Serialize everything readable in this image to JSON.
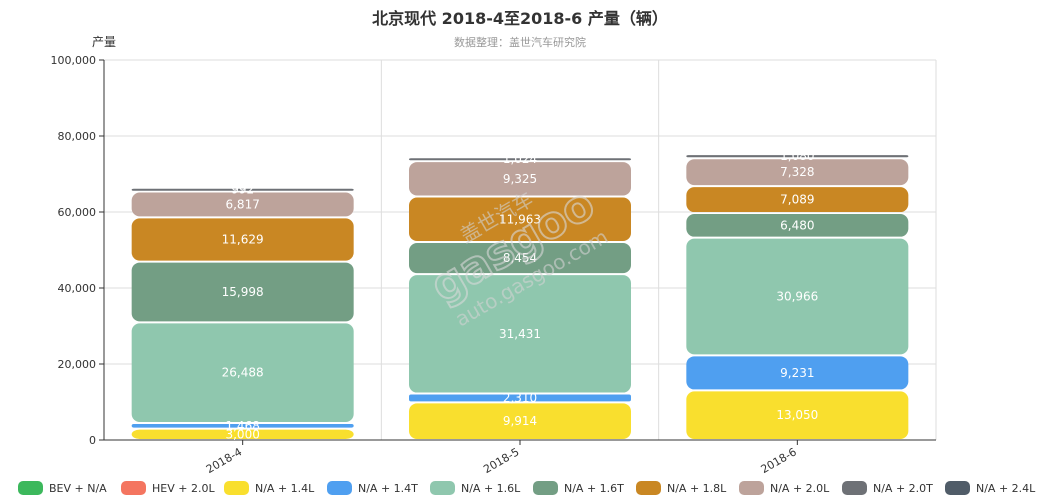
{
  "title": "北京现代 2018-4至2018-6 产量（辆）",
  "subtitle": "数据整理：盖世汽车研究院",
  "watermark": {
    "brand": "gasgoo",
    "cn": "盖世汽车",
    "url": "auto.gasgoo.com"
  },
  "chart_data": {
    "type": "bar",
    "stacked": true,
    "categories": [
      "2018-4",
      "2018-5",
      "2018-6"
    ],
    "ylabel": "产量",
    "ylim": [
      0,
      100000
    ],
    "yticks": [
      0,
      20000,
      40000,
      60000,
      80000,
      100000
    ],
    "grid": true,
    "legend_position": "bottom",
    "series": [
      {
        "name": "BEV + N/A",
        "color": "#3cb85c",
        "values": [
          0,
          0,
          0
        ]
      },
      {
        "name": "HEV + 2.0L",
        "color": "#f47560",
        "values": [
          0,
          0,
          0
        ]
      },
      {
        "name": "N/A + 1.4L",
        "color": "#f9df2e",
        "values": [
          3000,
          9914,
          13050
        ]
      },
      {
        "name": "N/A + 1.4T",
        "color": "#4f9ff0",
        "values": [
          1468,
          2310,
          9231
        ]
      },
      {
        "name": "N/A + 1.6L",
        "color": "#8fc7ae",
        "values": [
          26488,
          31431,
          30966
        ]
      },
      {
        "name": "N/A + 1.6T",
        "color": "#739e84",
        "values": [
          15998,
          8454,
          6480
        ]
      },
      {
        "name": "N/A + 1.8L",
        "color": "#c98723",
        "values": [
          11629,
          11963,
          7089
        ]
      },
      {
        "name": "N/A + 2.0L",
        "color": "#bda39b",
        "values": [
          6817,
          9325,
          7328
        ]
      },
      {
        "name": "N/A + 2.0T",
        "color": "#6e7176",
        "values": [
          992,
          1024,
          1080
        ]
      },
      {
        "name": "N/A + 2.4L",
        "color": "#505c68",
        "values": [
          0,
          0,
          0
        ]
      }
    ]
  }
}
